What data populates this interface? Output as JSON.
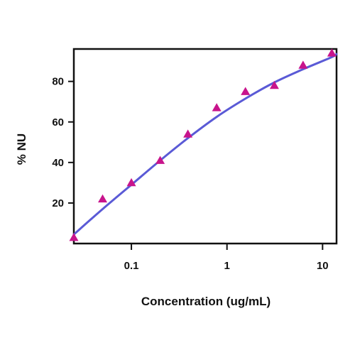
{
  "chart_data": {
    "type": "scatter",
    "title": "",
    "xlabel": "Concentration (ug/mL)",
    "ylabel": "% NU",
    "x_scale": "log",
    "xlim": [
      0.025,
      14
    ],
    "ylim": [
      0,
      96
    ],
    "x_ticks": [
      {
        "value": 0.1,
        "label": "0.1"
      },
      {
        "value": 1,
        "label": "1"
      },
      {
        "value": 10,
        "label": "10"
      }
    ],
    "y_ticks": [
      {
        "value": 20,
        "label": "20"
      },
      {
        "value": 40,
        "label": "40"
      },
      {
        "value": 60,
        "label": "60"
      },
      {
        "value": 80,
        "label": "80"
      }
    ],
    "grid": false,
    "legend": "none",
    "series": [
      {
        "kind": "points",
        "marker": "triangle",
        "color": "#c8148c",
        "x": [
          0.025,
          0.05,
          0.1,
          0.2,
          0.39,
          0.78,
          1.56,
          3.13,
          6.25,
          12.5
        ],
        "y": [
          3,
          22,
          30,
          41,
          54,
          67,
          75,
          78,
          88,
          94
        ]
      },
      {
        "kind": "fit-line",
        "color": "#5a5ad6",
        "x": [
          0.025,
          0.05,
          0.1,
          0.2,
          0.39,
          0.78,
          1.56,
          3.13,
          6.25,
          12.5,
          14
        ],
        "y": [
          4.5,
          17,
          29,
          41,
          52,
          62.5,
          71.5,
          79.5,
          86,
          92,
          93.5
        ]
      }
    ]
  }
}
